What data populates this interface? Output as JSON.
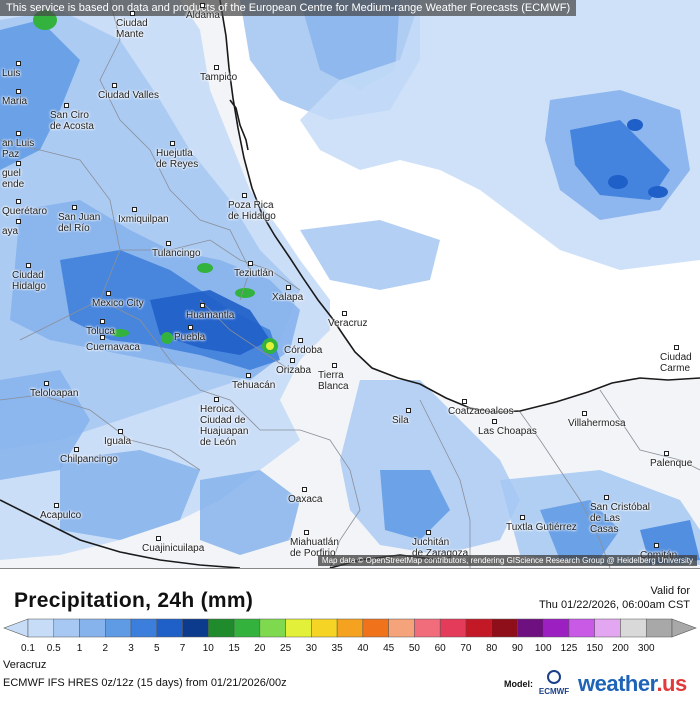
{
  "header": {
    "notice": "This service is based on data and products of the European Centre for Medium-range Weather Forecasts (ECMWF)"
  },
  "map": {
    "attribution": "Map data © OpenStreetMap contributors, rendering GIScience Research Group @ Heidelberg University",
    "colors": {
      "land": "#f2f4f8",
      "gulf": "#ffffff",
      "coast": "#1a1a1a",
      "state_border": "#8a8f99"
    },
    "cities": [
      {
        "name": "Ciudad\nMante"
      },
      {
        "name": "Aldama"
      },
      {
        "name": "Luis"
      },
      {
        "name": "Maria"
      },
      {
        "name": "Ciudad Valles"
      },
      {
        "name": "Tampico"
      },
      {
        "name": "San Ciro\nde Acosta"
      },
      {
        "name": "an Luis\nPaz"
      },
      {
        "name": "Huejutla\nde Reyes"
      },
      {
        "name": "guel\nende"
      },
      {
        "name": "Poza Rica\nde Hidalgo"
      },
      {
        "name": "Querétaro"
      },
      {
        "name": "San Juan\ndel Río"
      },
      {
        "name": "Ixmiquilpan"
      },
      {
        "name": "aya"
      },
      {
        "name": "Tulancingo"
      },
      {
        "name": "Ciudad\nHidalgo"
      },
      {
        "name": "Teziutlán"
      },
      {
        "name": "Xalapa"
      },
      {
        "name": "Mexico City"
      },
      {
        "name": "Toluca"
      },
      {
        "name": "Huamantla"
      },
      {
        "name": "Cuernavaca"
      },
      {
        "name": "Puebla"
      },
      {
        "name": "Veracruz"
      },
      {
        "name": "Córdoba"
      },
      {
        "name": "Orizaba"
      },
      {
        "name": "Tehuacán"
      },
      {
        "name": "Tierra\nBlanca"
      },
      {
        "name": "Heroica\nCiudad de\nHuajuapan\nde León"
      },
      {
        "name": "Teloloapan"
      },
      {
        "name": "Iguala"
      },
      {
        "name": "Sila"
      },
      {
        "name": "Coatzacoalcos"
      },
      {
        "name": "Las Choapas"
      },
      {
        "name": "Villahermosa"
      },
      {
        "name": "Ciudad\nCarme"
      },
      {
        "name": "Palenque"
      },
      {
        "name": "Chilpancingo"
      },
      {
        "name": "Oaxaca"
      },
      {
        "name": "Acapulco"
      },
      {
        "name": "Cuajinicuilapa"
      },
      {
        "name": "Miahuatlán\nde Porfirio"
      },
      {
        "name": "Juchitán\nde Zaragoza"
      },
      {
        "name": "Tuxtla Gutiérrez"
      },
      {
        "name": "San Cristóbal\nde Las\nCasas"
      },
      {
        "name": "Comitán"
      }
    ]
  },
  "legend": {
    "title": "Precipitation, 24h (mm)",
    "valid_label": "Valid for",
    "valid_time": "Thu 01/22/2026, 06:00am CST",
    "scale": [
      {
        "label": "0.1",
        "color": "#c6dcf7"
      },
      {
        "label": "0.5",
        "color": "#a6c8f2"
      },
      {
        "label": "1",
        "color": "#86b3ec"
      },
      {
        "label": "2",
        "color": "#5f9ae4"
      },
      {
        "label": "3",
        "color": "#3c7edb"
      },
      {
        "label": "5",
        "color": "#1f5fc8"
      },
      {
        "label": "7",
        "color": "#0c3b8e"
      },
      {
        "label": "10",
        "color": "#1f8b2c"
      },
      {
        "label": "15",
        "color": "#33b33e"
      },
      {
        "label": "20",
        "color": "#7fd94f"
      },
      {
        "label": "25",
        "color": "#e3f03a"
      },
      {
        "label": "30",
        "color": "#f5d426"
      },
      {
        "label": "35",
        "color": "#f4a21f"
      },
      {
        "label": "40",
        "color": "#f0731c"
      },
      {
        "label": "45",
        "color": "#f5a37a"
      },
      {
        "label": "50",
        "color": "#f26d7c"
      },
      {
        "label": "60",
        "color": "#e43b5a"
      },
      {
        "label": "70",
        "color": "#c31826"
      },
      {
        "label": "80",
        "color": "#8e0f1a"
      },
      {
        "label": "90",
        "color": "#6e107f"
      },
      {
        "label": "100",
        "color": "#9b1fc1"
      },
      {
        "label": "125",
        "color": "#c85ae6"
      },
      {
        "label": "150",
        "color": "#e3a6f0"
      },
      {
        "label": "200",
        "color": "#d9d9d9"
      },
      {
        "label": "300",
        "color": "#a8a8a8"
      }
    ]
  },
  "footer": {
    "region": "Veracruz",
    "model_run": "ECMWF IFS HRES 0z/12z (15 days) from 01/21/2026/00z",
    "model_label": "Model:",
    "ecmwf": "ECMWF",
    "brand": "weather",
    "brand_suffix": ".us"
  }
}
